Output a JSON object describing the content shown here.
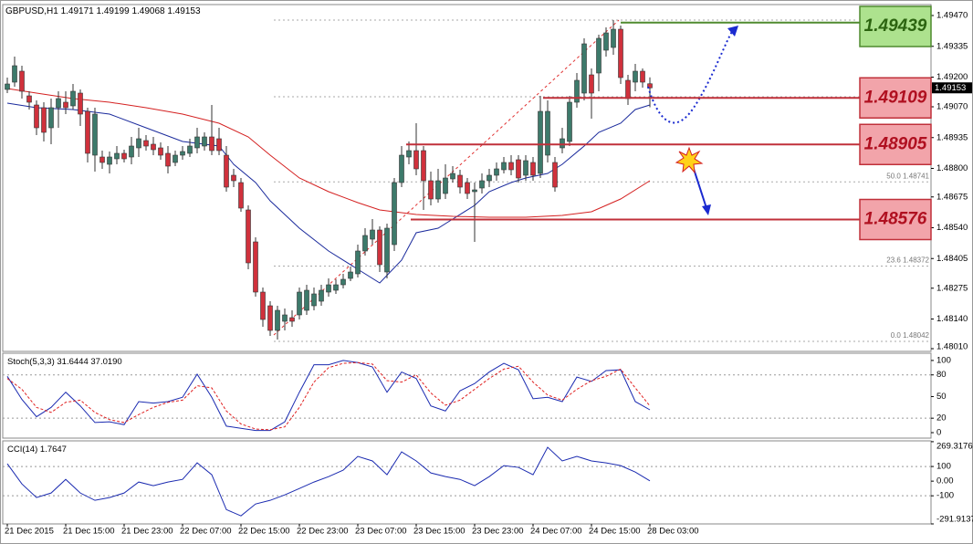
{
  "chart_data": [
    {
      "type": "candlestick",
      "title": "GBPUSD,H1",
      "up_color": "#3d7a6b",
      "down_color": "#d0313c",
      "xlim": [
        -0.625,
        126.5
      ],
      "ylim": [
        1.47998,
        1.49518
      ],
      "yticks": [
        {
          "value": 1.4947,
          "label": "1.49470"
        },
        1.49335,
        {
          "value": 1.492,
          "label": "1.49200"
        },
        {
          "value": 1.4907,
          "label": "1.49070"
        },
        1.48935,
        {
          "value": 1.488,
          "label": "1.48800"
        },
        1.48675,
        {
          "value": 1.4854,
          "label": "1.48540"
        },
        1.48405,
        1.48275,
        {
          "value": 1.4814,
          "label": "1.48140"
        },
        {
          "value": 1.4801,
          "label": "1.48010"
        }
      ],
      "ohlc": [
        [
          1.49146,
          1.49198,
          1.4913,
          1.4917
        ],
        [
          1.49178,
          1.4929,
          1.49158,
          1.4925
        ],
        [
          1.49226,
          1.4925,
          1.49106,
          1.49138
        ],
        [
          1.49118,
          1.49138,
          1.49058,
          1.4909
        ],
        [
          1.49078,
          1.49098,
          1.48946,
          1.48978
        ],
        [
          1.49066,
          1.4909,
          1.48918,
          1.48958
        ],
        [
          1.48978,
          1.49106,
          1.48906,
          1.49066
        ],
        [
          1.49066,
          1.49138,
          1.48978,
          1.49106
        ],
        [
          1.4909,
          1.49138,
          1.49038,
          1.49066
        ],
        [
          1.49074,
          1.4917,
          1.49058,
          1.49138
        ],
        [
          1.4913,
          1.49146,
          1.48986,
          1.49038
        ],
        [
          1.4905,
          1.49066,
          1.48826,
          1.48866
        ],
        [
          1.48858,
          1.49066,
          1.48786,
          1.49038
        ],
        [
          1.4885,
          1.48878,
          1.48798,
          1.48826
        ],
        [
          1.48818,
          1.48874,
          1.48778,
          1.4885
        ],
        [
          1.48842,
          1.48898,
          1.48818,
          1.48866
        ],
        [
          1.48866,
          1.48882,
          1.48826,
          1.48842
        ],
        [
          1.4885,
          1.48938,
          1.48818,
          1.48898
        ],
        [
          1.4889,
          1.48978,
          1.4885,
          1.4893
        ],
        [
          1.48922,
          1.48946,
          1.48878,
          1.48898
        ],
        [
          1.48906,
          1.48938,
          1.48858,
          1.48882
        ],
        [
          1.4889,
          1.48914,
          1.48838,
          1.48858
        ],
        [
          1.48866,
          1.48898,
          1.48778,
          1.4881
        ],
        [
          1.48826,
          1.48878,
          1.4881,
          1.48858
        ],
        [
          1.48858,
          1.48898,
          1.48838,
          1.48874
        ],
        [
          1.48866,
          1.4893,
          1.4885,
          1.48898
        ],
        [
          1.4889,
          1.48978,
          1.48866,
          1.48938
        ],
        [
          1.48898,
          1.48958,
          1.48878,
          1.48938
        ],
        [
          1.48938,
          1.49078,
          1.48858,
          1.48878
        ],
        [
          1.4893,
          1.48978,
          1.48858,
          1.48878
        ],
        [
          1.48858,
          1.48898,
          1.48698,
          1.48718
        ],
        [
          1.4877,
          1.48798,
          1.48718,
          1.48746
        ],
        [
          1.48738,
          1.48758,
          1.4861,
          1.48626
        ],
        [
          1.48618,
          1.48638,
          1.48358,
          1.48386
        ],
        [
          1.48478,
          1.48498,
          1.48238,
          1.48258
        ],
        [
          1.48258,
          1.48278,
          1.48106,
          1.48138
        ],
        [
          1.48198,
          1.48218,
          1.48066,
          1.4809
        ],
        [
          1.4809,
          1.48198,
          1.4805,
          1.48178
        ],
        [
          1.4813,
          1.48186,
          1.4809,
          1.48158
        ],
        [
          1.48146,
          1.48178,
          1.48106,
          1.4813
        ],
        [
          1.48158,
          1.48278,
          1.48138,
          1.48258
        ],
        [
          1.48178,
          1.4829,
          1.48158,
          1.48266
        ],
        [
          1.48198,
          1.48278,
          1.48178,
          1.4825
        ],
        [
          1.48218,
          1.4829,
          1.48198,
          1.48266
        ],
        [
          1.48258,
          1.48318,
          1.48238,
          1.4829
        ],
        [
          1.48266,
          1.48314,
          1.4825,
          1.4829
        ],
        [
          1.4829,
          1.48338,
          1.48274,
          1.48314
        ],
        [
          1.48318,
          1.4837,
          1.48306,
          1.48346
        ],
        [
          1.48338,
          1.48466,
          1.48322,
          1.48438
        ],
        [
          1.48438,
          1.48538,
          1.48418,
          1.48506
        ],
        [
          1.4849,
          1.48578,
          1.48466,
          1.4853
        ],
        [
          1.4853,
          1.48546,
          1.48346,
          1.48378
        ],
        [
          1.48346,
          1.48558,
          1.48318,
          1.48538
        ],
        [
          1.48466,
          1.48758,
          1.48438,
          1.48738
        ],
        [
          1.48738,
          1.48898,
          1.48718,
          1.48858
        ],
        [
          1.4885,
          1.48918,
          1.48818,
          1.48878
        ],
        [
          1.48878,
          1.48998,
          1.4877,
          1.48798
        ],
        [
          1.48878,
          1.48898,
          1.48618,
          1.48746
        ],
        [
          1.48746,
          1.48786,
          1.48638,
          1.48666
        ],
        [
          1.48666,
          1.48798,
          1.4865,
          1.48746
        ],
        [
          1.4869,
          1.48818,
          1.48666,
          1.48758
        ],
        [
          1.48754,
          1.4881,
          1.48738,
          1.48778
        ],
        [
          1.4877,
          1.48794,
          1.4869,
          1.48718
        ],
        [
          1.48738,
          1.48758,
          1.48666,
          1.4869
        ],
        [
          1.48698,
          1.48738,
          1.48478,
          1.48706
        ],
        [
          1.48714,
          1.48778,
          1.4869,
          1.48746
        ],
        [
          1.48746,
          1.48798,
          1.48718,
          1.4877
        ],
        [
          1.4877,
          1.48826,
          1.48746,
          1.48798
        ],
        [
          1.48794,
          1.4885,
          1.48778,
          1.48826
        ],
        [
          1.48826,
          1.48858,
          1.4877,
          1.48794
        ],
        [
          1.48838,
          1.48858,
          1.48738,
          1.48758
        ],
        [
          1.4877,
          1.48858,
          1.48746,
          1.48834
        ],
        [
          1.48826,
          1.4885,
          1.48746,
          1.4877
        ],
        [
          1.48778,
          1.49118,
          1.48758,
          1.4905
        ],
        [
          1.48858,
          1.49098,
          1.48826,
          1.4905
        ],
        [
          1.48826,
          1.4885,
          1.48698,
          1.48718
        ],
        [
          1.4889,
          1.48978,
          1.48866,
          1.4893
        ],
        [
          1.48918,
          1.49118,
          1.48898,
          1.4909
        ],
        [
          1.4909,
          1.49218,
          1.49066,
          1.49186
        ],
        [
          1.4913,
          1.4937,
          1.49098,
          1.49346
        ],
        [
          1.4921,
          1.49238,
          1.49018,
          1.4913
        ],
        [
          1.49218,
          1.49386,
          1.49138,
          1.4937
        ],
        [
          1.49318,
          1.49418,
          1.4929,
          1.49394
        ],
        [
          1.4933,
          1.4945,
          1.49298,
          1.4941
        ],
        [
          1.4941,
          1.49426,
          1.4917,
          1.49198
        ],
        [
          1.49186,
          1.4921,
          1.49078,
          1.49106
        ],
        [
          1.49178,
          1.49258,
          1.49138,
          1.49226
        ],
        [
          1.49226,
          1.49238,
          1.49154,
          1.49178
        ],
        [
          1.49171,
          1.49199,
          1.49068,
          1.49153
        ]
      ],
      "overlays": [
        {
          "color": "#1a2a9c",
          "x": [
            0,
            4,
            9,
            14,
            19,
            24,
            29,
            31,
            34,
            36,
            40,
            44,
            48,
            51,
            54,
            56,
            59,
            61,
            64,
            66,
            69,
            71,
            74,
            76,
            79,
            81,
            84,
            86,
            88
          ],
          "values": [
            1.49086,
            1.49066,
            1.49058,
            1.49038,
            1.48978,
            1.48918,
            1.48898,
            1.48818,
            1.48738,
            1.48658,
            1.48538,
            1.48438,
            1.48358,
            1.48298,
            1.48398,
            1.48518,
            1.48538,
            1.48578,
            1.48638,
            1.48698,
            1.48738,
            1.48758,
            1.48778,
            1.48818,
            1.48898,
            1.48958,
            1.48998,
            1.49058,
            1.49078
          ]
        },
        {
          "color": "#d42020",
          "x": [
            0,
            4,
            9,
            14,
            19,
            24,
            29,
            33,
            36,
            40,
            44,
            48,
            51,
            56,
            61,
            66,
            71,
            76,
            80,
            84,
            88
          ],
          "values": [
            1.4915,
            1.4913,
            1.49106,
            1.4909,
            1.49066,
            1.49038,
            1.48998,
            1.48938,
            1.48858,
            1.48758,
            1.48698,
            1.4865,
            1.48618,
            1.48598,
            1.4859,
            1.48586,
            1.48586,
            1.48594,
            1.4861,
            1.48666,
            1.48746
          ]
        }
      ],
      "levels": [
        {
          "value": 1.49439,
          "color": "#4f8a2f",
          "fill": "#ade28e",
          "text_color": "#2c6410"
        },
        {
          "value": 1.49109,
          "color": "#c0303a",
          "fill": "#f2a4aa",
          "text_color": "#b01020"
        },
        {
          "value": 1.48905,
          "color": "#c0303a",
          "fill": "#f2a4aa",
          "text_color": "#b01020"
        },
        {
          "value": 1.48576,
          "color": "#c0303a",
          "fill": "#f2a4aa",
          "text_color": "#b01020"
        }
      ],
      "fib_levels": [
        {
          "value": 1.48741,
          "label": "50.0  1.48741"
        },
        {
          "value": 1.48372,
          "label": "23.6  1.48372"
        },
        {
          "value": 1.48042,
          "label": "0.0  1.48042"
        }
      ]
    },
    {
      "type": "line",
      "title": "Stoch(5,3,3)",
      "readout": [
        31.6444,
        {
          "value": 37.019,
          "label": "37.0190"
        }
      ],
      "xlim": [
        -0.625,
        126.5
      ],
      "ylim": [
        -7.6,
        110
      ],
      "yticks": [
        100,
        80,
        50,
        20,
        0
      ],
      "levels": [
        80,
        20
      ],
      "x": [
        0,
        2,
        4,
        6,
        8,
        10,
        12,
        14,
        16,
        18,
        20,
        22,
        24,
        26,
        28,
        30,
        32,
        34,
        36,
        38,
        40,
        42,
        44,
        46,
        48,
        50,
        52,
        54,
        56,
        58,
        60,
        62,
        64,
        66,
        68,
        70,
        72,
        74,
        76,
        78,
        80,
        82,
        84,
        86,
        88
      ],
      "lines": [
        {
          "color": "#1a2ab0",
          "dash": false,
          "values": [
            78,
            46,
            22,
            35,
            56,
            37,
            14,
            15,
            11,
            43,
            41,
            43,
            49,
            81,
            49,
            9,
            6,
            3,
            3,
            15,
            56,
            94,
            94,
            100,
            97,
            91,
            56,
            84,
            75,
            37,
            30,
            58,
            68,
            84,
            96,
            87,
            47,
            49,
            43,
            77,
            71,
            86,
            87,
            43,
            31.6
          ]
        },
        {
          "color": "#e02020",
          "dash": true,
          "values": [
            75,
            60,
            35,
            28,
            42,
            45,
            28,
            18,
            14,
            25,
            35,
            42,
            45,
            65,
            62,
            30,
            12,
            5,
            4,
            8,
            35,
            70,
            90,
            96,
            97,
            95,
            72,
            70,
            80,
            55,
            38,
            45,
            60,
            75,
            88,
            92,
            70,
            52,
            45,
            60,
            72,
            78,
            88,
            62,
            37
          ]
        }
      ]
    },
    {
      "type": "line",
      "title": "CCI(14)",
      "readout": [
        1.7647
      ],
      "xlim": [
        -0.625,
        126.5
      ],
      "ylim": [
        -292,
        275
      ],
      "yticks": [
        269.3176,
        100,
        {
          "value": 0,
          "label": "0.00"
        },
        -100,
        -291.9137
      ],
      "levels": [
        100,
        -100
      ],
      "xticks": [
        {
          "value": 0,
          "label": "21 Dec 2015"
        },
        {
          "value": 8,
          "label": "21 Dec 15:00"
        },
        {
          "value": 16,
          "label": "21 Dec 23:00"
        },
        {
          "value": 24,
          "label": "22 Dec 07:00"
        },
        {
          "value": 32,
          "label": "22 Dec 15:00"
        },
        {
          "value": 40,
          "label": "22 Dec 23:00"
        },
        {
          "value": 48,
          "label": "23 Dec 07:00"
        },
        {
          "value": 56,
          "label": "23 Dec 15:00"
        },
        {
          "value": 64,
          "label": "23 Dec 23:00"
        },
        {
          "value": 72,
          "label": "24 Dec 07:00"
        },
        {
          "value": 80,
          "label": "24 Dec 15:00"
        },
        {
          "value": 88,
          "label": "28 Dec 03:00"
        }
      ],
      "x": [
        0,
        2,
        4,
        6,
        8,
        10,
        12,
        14,
        16,
        18,
        20,
        22,
        24,
        26,
        28,
        30,
        32,
        34,
        36,
        38,
        40,
        42,
        44,
        46,
        48,
        50,
        52,
        54,
        56,
        58,
        60,
        62,
        64,
        66,
        68,
        70,
        72,
        74,
        76,
        78,
        80,
        82,
        84,
        86,
        88
      ],
      "lines": [
        {
          "color": "#1a2ab0",
          "dash": false,
          "values": [
            119,
            -19,
            -112,
            -81,
            12,
            -81,
            -131,
            -112,
            -81,
            -6,
            -31,
            -6,
            12,
            125,
            44,
            -194,
            -237,
            -156,
            -131,
            -94,
            -50,
            -6,
            31,
            75,
            169,
            138,
            44,
            200,
            138,
            56,
            31,
            12,
            -31,
            31,
            106,
            94,
            44,
            231,
            138,
            169,
            138,
            125,
            106,
            62,
            1.76
          ]
        }
      ]
    }
  ]
}
